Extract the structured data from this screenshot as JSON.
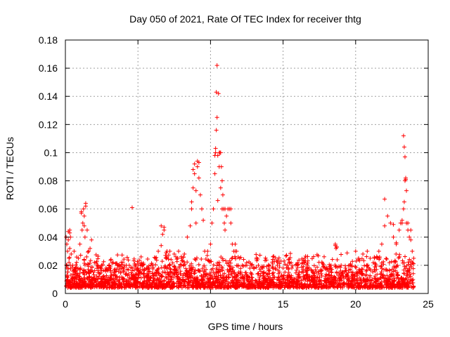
{
  "chart_data": {
    "type": "scatter",
    "title": "Day 050 of 2021, Rate Of TEC Index for receiver thtg",
    "xlabel": "GPS time / hours",
    "ylabel": "ROTI / TECUs",
    "xlim": [
      0,
      25
    ],
    "ylim": [
      0,
      0.18
    ],
    "x_ticks": [
      0,
      5,
      10,
      15,
      20,
      25
    ],
    "x_tick_labels": [
      "0",
      "5",
      "10",
      "15",
      "20",
      "25"
    ],
    "y_ticks": [
      0,
      0.02,
      0.04,
      0.06,
      0.08,
      0.1,
      0.12,
      0.14,
      0.16,
      0.18
    ],
    "y_tick_labels": [
      "0",
      "0.02",
      "0.04",
      "0.06",
      "0.08",
      "0.1",
      "0.12",
      "0.14",
      "0.16",
      "0.18"
    ],
    "grid": true,
    "marker": "plus",
    "color": "#ff0000",
    "series": [
      {
        "name": "ROTI",
        "x": [
          0.05,
          0.1,
          0.15,
          0.2,
          0.25,
          0.3,
          0.35,
          0.4,
          0.2,
          0.3,
          0.35,
          0.1,
          0.25,
          0.5,
          0.7,
          0.9,
          1.0,
          1.1,
          1.15,
          1.2,
          1.25,
          1.3,
          1.35,
          1.4,
          1.5,
          1.6,
          1.7,
          1.8,
          2.0,
          2.2,
          2.5,
          2.8,
          3.0,
          3.3,
          3.6,
          3.9,
          4.2,
          4.4,
          4.6,
          4.8,
          5.0,
          5.3,
          5.6,
          5.9,
          6.2,
          6.4,
          6.6,
          6.7,
          6.8,
          7.0,
          7.2,
          7.5,
          7.8,
          8.0,
          8.2,
          8.4,
          8.6,
          8.7,
          8.8,
          8.9,
          9.0,
          9.1,
          9.2,
          9.3,
          9.4,
          9.5,
          9.6,
          9.8,
          10.0,
          10.1,
          10.2,
          10.3,
          10.35,
          10.4,
          10.45,
          10.5,
          10.55,
          10.6,
          10.65,
          10.7,
          10.75,
          10.8,
          10.85,
          10.9,
          10.95,
          11.0,
          11.1,
          11.2,
          11.3,
          11.4,
          11.5,
          11.6,
          11.7,
          11.8,
          12.0,
          12.2,
          12.5,
          12.8,
          13.0,
          13.3,
          13.6,
          14.0,
          14.3,
          14.6,
          15.0,
          15.3,
          15.6,
          16.0,
          16.3,
          16.6,
          17.0,
          17.3,
          17.6,
          18.0,
          18.3,
          18.6,
          18.7,
          19.0,
          19.3,
          19.6,
          20.0,
          20.2,
          20.5,
          20.8,
          21.0,
          21.3,
          21.6,
          21.8,
          22.0,
          22.2,
          22.4,
          22.6,
          22.8,
          23.0,
          23.1,
          23.2,
          23.3,
          23.35,
          23.4,
          23.45,
          23.5,
          23.6,
          23.7,
          23.8,
          23.9,
          24.0,
          0.3,
          0.6,
          1.1,
          1.3,
          1.4,
          4.6,
          6.6,
          6.8,
          7.0,
          8.7,
          8.8,
          8.9,
          9.0,
          9.1,
          9.2,
          10.3,
          10.35,
          10.4,
          10.45,
          10.5,
          10.6,
          10.7,
          10.8,
          11.0,
          11.4,
          11.7,
          11.9,
          22.0,
          22.6,
          22.8,
          23.2,
          23.3,
          23.35,
          23.4,
          23.45,
          23.5,
          23.6,
          23.8,
          18.6,
          18.65,
          18.7
        ],
        "y": [
          0.04,
          0.035,
          0.03,
          0.038,
          0.025,
          0.032,
          0.02,
          0.028,
          0.044,
          0.045,
          0.04,
          0.018,
          0.022,
          0.02,
          0.018,
          0.025,
          0.035,
          0.058,
          0.045,
          0.05,
          0.06,
          0.055,
          0.04,
          0.064,
          0.045,
          0.03,
          0.032,
          0.038,
          0.022,
          0.02,
          0.02,
          0.018,
          0.02,
          0.022,
          0.02,
          0.018,
          0.02,
          0.02,
          0.018,
          0.02,
          0.018,
          0.02,
          0.018,
          0.02,
          0.025,
          0.03,
          0.048,
          0.042,
          0.045,
          0.03,
          0.03,
          0.028,
          0.03,
          0.025,
          0.028,
          0.04,
          0.048,
          0.06,
          0.075,
          0.085,
          0.05,
          0.09,
          0.093,
          0.07,
          0.06,
          0.052,
          0.03,
          0.03,
          0.035,
          0.05,
          0.06,
          0.085,
          0.1,
          0.116,
          0.125,
          0.098,
          0.142,
          0.09,
          0.1,
          0.1,
          0.09,
          0.08,
          0.07,
          0.06,
          0.05,
          0.045,
          0.055,
          0.06,
          0.06,
          0.05,
          0.035,
          0.03,
          0.035,
          0.03,
          0.025,
          0.02,
          0.02,
          0.02,
          0.018,
          0.02,
          0.018,
          0.02,
          0.018,
          0.02,
          0.018,
          0.02,
          0.018,
          0.02,
          0.015,
          0.015,
          0.016,
          0.015,
          0.016,
          0.018,
          0.02,
          0.035,
          0.033,
          0.02,
          0.018,
          0.02,
          0.03,
          0.025,
          0.028,
          0.03,
          0.025,
          0.025,
          0.03,
          0.035,
          0.048,
          0.055,
          0.05,
          0.04,
          0.035,
          0.045,
          0.05,
          0.05,
          0.06,
          0.065,
          0.08,
          0.082,
          0.05,
          0.045,
          0.04,
          0.038,
          0.03,
          0.025,
          0.043,
          0.03,
          0.057,
          0.048,
          0.062,
          0.061,
          0.034,
          0.047,
          0.026,
          0.065,
          0.088,
          0.092,
          0.073,
          0.094,
          0.082,
          0.098,
          0.103,
          0.143,
          0.162,
          0.066,
          0.1,
          0.075,
          0.06,
          0.06,
          0.06,
          0.03,
          0.02,
          0.067,
          0.049,
          0.036,
          0.052,
          0.112,
          0.104,
          0.097,
          0.081,
          0.073,
          0.05,
          0.045,
          0.034,
          0.032,
          0.033
        ]
      }
    ]
  }
}
